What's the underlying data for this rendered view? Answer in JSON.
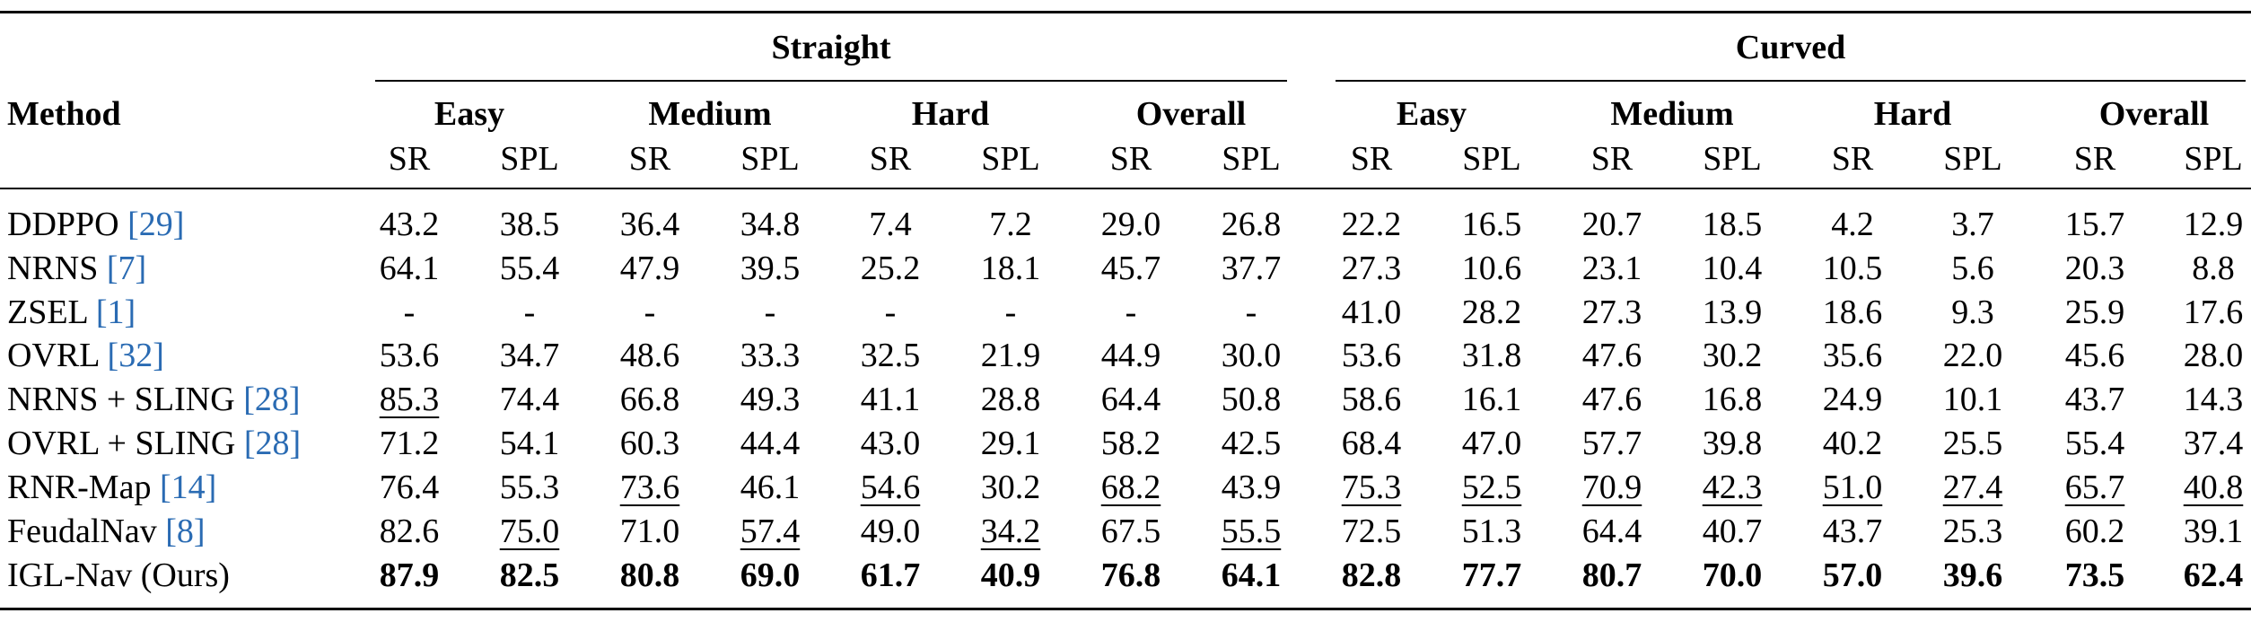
{
  "table": {
    "method_header": "Method",
    "groups": [
      {
        "label": "Straight",
        "subgroups": [
          "Easy",
          "Medium",
          "Hard",
          "Overall"
        ]
      },
      {
        "label": "Curved",
        "subgroups": [
          "Easy",
          "Medium",
          "Hard",
          "Overall"
        ]
      }
    ],
    "metrics": [
      "SR",
      "SPL"
    ],
    "rows": [
      {
        "name": "DDPPO ",
        "cite": "[29]",
        "suffix": "",
        "values": [
          "43.2",
          "38.5",
          "36.4",
          "34.8",
          "7.4",
          "7.2",
          "29.0",
          "26.8",
          "22.2",
          "16.5",
          "20.7",
          "18.5",
          "4.2",
          "3.7",
          "15.7",
          "12.9"
        ],
        "bold": [],
        "underline": []
      },
      {
        "name": "NRNS ",
        "cite": "[7]",
        "suffix": "",
        "values": [
          "64.1",
          "55.4",
          "47.9",
          "39.5",
          "25.2",
          "18.1",
          "45.7",
          "37.7",
          "27.3",
          "10.6",
          "23.1",
          "10.4",
          "10.5",
          "5.6",
          "20.3",
          "8.8"
        ],
        "bold": [],
        "underline": []
      },
      {
        "name": "ZSEL ",
        "cite": "[1]",
        "suffix": "",
        "values": [
          "-",
          "-",
          "-",
          "-",
          "-",
          "-",
          "-",
          "-",
          "41.0",
          "28.2",
          "27.3",
          "13.9",
          "18.6",
          "9.3",
          "25.9",
          "17.6"
        ],
        "bold": [],
        "underline": []
      },
      {
        "name": "OVRL ",
        "cite": "[32]",
        "suffix": "",
        "values": [
          "53.6",
          "34.7",
          "48.6",
          "33.3",
          "32.5",
          "21.9",
          "44.9",
          "30.0",
          "53.6",
          "31.8",
          "47.6",
          "30.2",
          "35.6",
          "22.0",
          "45.6",
          "28.0"
        ],
        "bold": [],
        "underline": []
      },
      {
        "name": "NRNS + SLING ",
        "cite": "[28]",
        "suffix": "",
        "values": [
          "85.3",
          "74.4",
          "66.8",
          "49.3",
          "41.1",
          "28.8",
          "64.4",
          "50.8",
          "58.6",
          "16.1",
          "47.6",
          "16.8",
          "24.9",
          "10.1",
          "43.7",
          "14.3"
        ],
        "bold": [],
        "underline": [
          0
        ]
      },
      {
        "name": "OVRL + SLING ",
        "cite": "[28]",
        "suffix": "",
        "values": [
          "71.2",
          "54.1",
          "60.3",
          "44.4",
          "43.0",
          "29.1",
          "58.2",
          "42.5",
          "68.4",
          "47.0",
          "57.7",
          "39.8",
          "40.2",
          "25.5",
          "55.4",
          "37.4"
        ],
        "bold": [],
        "underline": []
      },
      {
        "name": "RNR-Map ",
        "cite": "[14]",
        "suffix": "",
        "values": [
          "76.4",
          "55.3",
          "73.6",
          "46.1",
          "54.6",
          "30.2",
          "68.2",
          "43.9",
          "75.3",
          "52.5",
          "70.9",
          "42.3",
          "51.0",
          "27.4",
          "65.7",
          "40.8"
        ],
        "bold": [],
        "underline": [
          2,
          4,
          6,
          8,
          9,
          10,
          11,
          12,
          13,
          14,
          15
        ]
      },
      {
        "name": "FeudalNav ",
        "cite": "[8]",
        "suffix": "",
        "values": [
          "82.6",
          "75.0",
          "71.0",
          "57.4",
          "49.0",
          "34.2",
          "67.5",
          "55.5",
          "72.5",
          "51.3",
          "64.4",
          "40.7",
          "43.7",
          "25.3",
          "60.2",
          "39.1"
        ],
        "bold": [],
        "underline": [
          1,
          3,
          5,
          7
        ]
      },
      {
        "name": "IGL-Nav (Ours)",
        "cite": "",
        "suffix": "",
        "values": [
          "87.9",
          "82.5",
          "80.8",
          "69.0",
          "61.7",
          "40.9",
          "76.8",
          "64.1",
          "82.8",
          "77.7",
          "80.7",
          "70.0",
          "57.0",
          "39.6",
          "73.5",
          "62.4"
        ],
        "bold": [
          0,
          1,
          2,
          3,
          4,
          5,
          6,
          7,
          8,
          9,
          10,
          11,
          12,
          13,
          14,
          15
        ],
        "underline": []
      }
    ]
  }
}
